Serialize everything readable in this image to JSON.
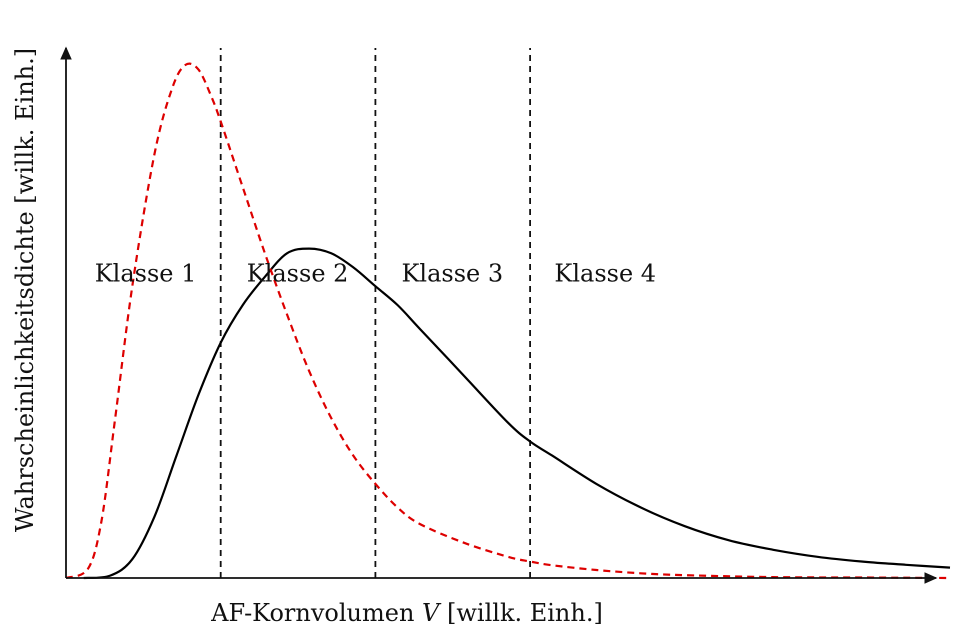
{
  "chart_data": {
    "type": "line",
    "title": "",
    "xlabel_prefix": "AF-Kornvolumen ",
    "xlabel_var": "V",
    "xlabel_suffix": " [willk. Einh.]",
    "ylabel": "Wahrscheinlichkeitsdichte [willk. Einh.]",
    "xlim": [
      0,
      10
    ],
    "ylim": [
      0,
      1.1
    ],
    "grid": false,
    "class_boundaries": [
      1.75,
      3.5,
      5.25
    ],
    "class_labels": [
      {
        "text": "Klasse 1",
        "x": 0.9
      },
      {
        "text": "Klasse 2",
        "x": 2.62
      },
      {
        "text": "Klasse 3",
        "x": 4.37
      },
      {
        "text": "Klasse 4",
        "x": 6.1
      }
    ],
    "class_label_y": 0.63,
    "series": [
      {
        "style": "solid",
        "color": "#000000",
        "x": [
          0.2,
          0.5,
          0.75,
          1.0,
          1.25,
          1.5,
          1.75,
          2.0,
          2.25,
          2.5,
          2.75,
          3.0,
          3.25,
          3.5,
          3.75,
          4.0,
          4.5,
          5.0,
          5.25,
          5.5,
          6.0,
          6.5,
          7.0,
          7.5,
          8.0,
          8.5,
          9.0,
          9.5,
          10.0
        ],
        "values": [
          0.0,
          0.005,
          0.04,
          0.13,
          0.26,
          0.39,
          0.5,
          0.58,
          0.64,
          0.69,
          0.7,
          0.69,
          0.66,
          0.62,
          0.58,
          0.53,
          0.43,
          0.33,
          0.29,
          0.26,
          0.2,
          0.15,
          0.11,
          0.08,
          0.06,
          0.045,
          0.035,
          0.028,
          0.022
        ]
      },
      {
        "style": "dashed",
        "color": "#dd0000",
        "x": [
          0.0,
          0.25,
          0.4,
          0.55,
          0.75,
          1.0,
          1.2,
          1.35,
          1.5,
          1.65,
          1.75,
          2.0,
          2.25,
          2.5,
          2.75,
          3.0,
          3.25,
          3.5,
          3.75,
          4.0,
          4.5,
          5.0,
          5.25,
          5.5,
          6.0,
          6.5,
          7.0,
          8.0,
          9.0,
          10.0
        ],
        "values": [
          0.0,
          0.02,
          0.12,
          0.33,
          0.62,
          0.9,
          1.04,
          1.09,
          1.08,
          1.02,
          0.97,
          0.83,
          0.69,
          0.56,
          0.44,
          0.34,
          0.26,
          0.2,
          0.15,
          0.115,
          0.075,
          0.045,
          0.035,
          0.027,
          0.017,
          0.01,
          0.006,
          0.002,
          0.001,
          0.0
        ]
      }
    ]
  }
}
